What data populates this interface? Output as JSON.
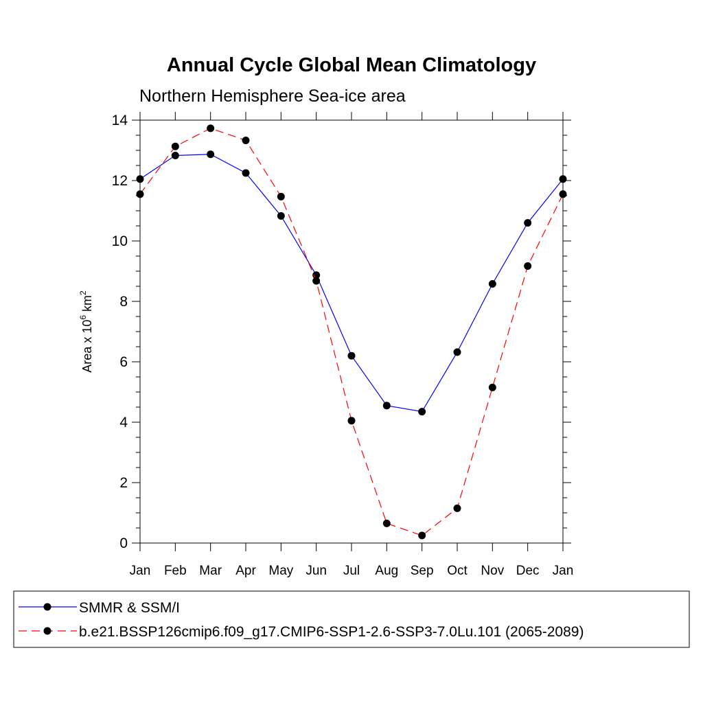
{
  "chart_data": {
    "type": "line",
    "title": "Annual Cycle Global Mean Climatology",
    "subtitle": "Northern Hemisphere Sea-ice area",
    "ylabel": "Area x 10",
    "ylabel_sup1": "6",
    "ylabel_unit": " km",
    "ylabel_sup2": "2",
    "xlabel": "",
    "categories": [
      "Jan",
      "Feb",
      "Mar",
      "Apr",
      "May",
      "Jun",
      "Jul",
      "Aug",
      "Sep",
      "Oct",
      "Nov",
      "Dec",
      "Jan"
    ],
    "ylim": [
      0,
      14
    ],
    "yticks": [
      0,
      2,
      4,
      6,
      8,
      10,
      12,
      14
    ],
    "grid": false,
    "legend_position": "bottom",
    "series": [
      {
        "name": "SMMR & SSM/I",
        "color": "#0000ff",
        "line_style": "solid",
        "values": [
          12.05,
          12.83,
          12.87,
          12.25,
          10.83,
          8.87,
          6.2,
          4.55,
          4.35,
          6.32,
          8.58,
          10.6,
          12.05
        ]
      },
      {
        "name": "b.e21.BSSP126cmip6.f09_g17.CMIP6-SSP1-2.6-SSP3-7.0Lu.101 (2065-2089)",
        "color": "#ff0000",
        "line_style": "dashed",
        "values": [
          11.55,
          13.13,
          13.73,
          13.33,
          11.47,
          8.68,
          4.05,
          0.65,
          0.25,
          1.15,
          5.15,
          9.17,
          11.55
        ]
      }
    ]
  }
}
